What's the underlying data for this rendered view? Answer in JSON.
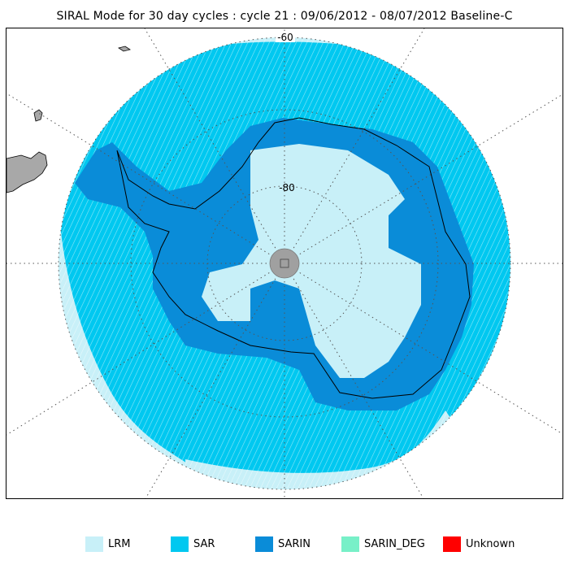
{
  "title": "SIRAL Mode for 30 day cycles : cycle 21 : 09/06/2012 - 08/07/2012 Baseline-C",
  "map": {
    "projection": "south-polar-stereographic",
    "latitude_labels": [
      "-60",
      "-80"
    ],
    "colors": {
      "ocean_outer": "#ffffff",
      "landmass": "#a8a8a8",
      "pole_hole": "#a0a0a0",
      "graticule": "#555555",
      "coastline": "#000000"
    }
  },
  "legend": {
    "items": [
      {
        "label": "LRM",
        "color": "#c8f0f8"
      },
      {
        "label": "SAR",
        "color": "#00c8f0"
      },
      {
        "label": "SARIN",
        "color": "#0a8cd8"
      },
      {
        "label": "SARIN_DEG",
        "color": "#78f0c8"
      },
      {
        "label": "Unknown",
        "color": "#ff0000"
      }
    ]
  }
}
